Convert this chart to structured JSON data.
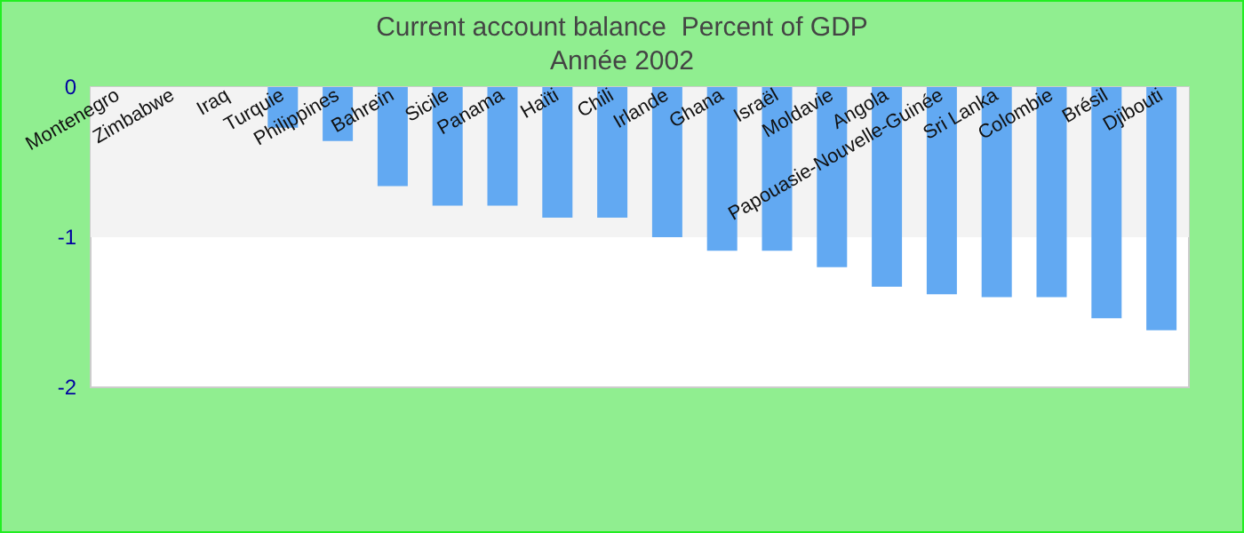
{
  "chart_data": {
    "type": "bar",
    "title": "Current account balance  Percent of GDP",
    "subtitle": "Année 2002",
    "categories": [
      "Montenegro",
      "Zimbabwe",
      "Iraq",
      "Turquie",
      "Philippines",
      "Bahreïn",
      "Sicile",
      "Panama",
      "Haïti",
      "Chili",
      "Irlande",
      "Ghana",
      "Israël",
      "Moldavie",
      "Angola",
      "Papouasie-Nouvelle-Guinée",
      "Sri Lanka",
      "Colombie",
      "Brésil",
      "Djibouti"
    ],
    "values": [
      null,
      null,
      null,
      -0.27,
      -0.36,
      -0.66,
      -0.79,
      -0.79,
      -0.87,
      -0.87,
      -1.0,
      -1.09,
      -1.09,
      -1.2,
      -1.33,
      -1.38,
      -1.4,
      -1.4,
      -1.54,
      -1.62
    ],
    "color": "#62a9f2",
    "ylim": [
      -2,
      0
    ],
    "yticks": [
      -2,
      -1,
      0
    ],
    "bands": [
      {
        "axis": "y",
        "from": -1,
        "to": 0,
        "color": "#f3f3f3"
      }
    ]
  }
}
